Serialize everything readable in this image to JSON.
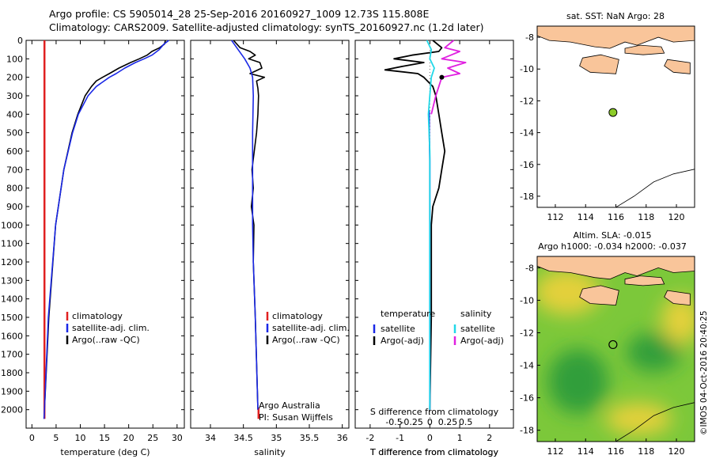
{
  "header": {
    "line1": "Argo profile: CS 5905014_28 25-Sep-2016 20160927_1009 12.73S 115.808E",
    "line2": "Climatology: CARS2009. Satellite-adjusted climatology: synTS_20160927.nc (1.2d later)"
  },
  "colors": {
    "climatology": "#e02020",
    "satellite": "#1a28e6",
    "argo": "#000000",
    "sal_satellite": "#22d8e8",
    "sal_argo": "#e020e0",
    "land": "#f9c59a",
    "sst_marker": "#8ccc28"
  },
  "chart_data": [
    {
      "type": "line",
      "panel": "temperature",
      "xlabel": "temperature (deg C)",
      "ylabel": "",
      "xlim": [
        -1.2,
        31.5
      ],
      "ylim": [
        2100,
        0
      ],
      "xticks": [
        "0",
        "5",
        "10",
        "15",
        "20",
        "25",
        "30"
      ],
      "xtick_values": [
        0,
        5,
        10,
        15,
        20,
        25,
        30
      ],
      "yticks": [
        "0",
        "100",
        "200",
        "300",
        "400",
        "500",
        "600",
        "700",
        "800",
        "900",
        "1000",
        "1100",
        "1200",
        "1300",
        "1400",
        "1500",
        "1600",
        "1700",
        "1800",
        "1900",
        "2000"
      ],
      "ytick_values": [
        0,
        100,
        200,
        300,
        400,
        500,
        600,
        700,
        800,
        900,
        1000,
        1100,
        1200,
        1300,
        1400,
        1500,
        1600,
        1700,
        1800,
        1900,
        2000
      ],
      "legend": [
        "climatology",
        "satellite-adj. clim.",
        "Argo(..raw -QC)"
      ],
      "series": [
        {
          "name": "Argo(..raw -QC)",
          "color_key": "argo",
          "depth": [
            0,
            20,
            40,
            60,
            80,
            100,
            120,
            150,
            180,
            200,
            220,
            250,
            300,
            400,
            500,
            700,
            1000,
            1500,
            2000
          ],
          "values": [
            27.6,
            27.4,
            26.4,
            24.8,
            23.8,
            22.2,
            20.4,
            18.0,
            16.0,
            14.6,
            13.3,
            12.3,
            11.0,
            9.5,
            8.3,
            6.6,
            4.9,
            3.5,
            2.6
          ]
        },
        {
          "name": "climatology",
          "color_key": "climatology",
          "depth": [
            0,
            2000,
            2050
          ],
          "values": [
            2.6,
            2.6,
            2.6
          ]
        },
        {
          "name": "satellite-adj. clim.",
          "color_key": "satellite",
          "depth": [
            0,
            20,
            50,
            80,
            100,
            120,
            150,
            180,
            200,
            250,
            300,
            400,
            500,
            700,
            1000,
            1500,
            2000,
            2050
          ],
          "values": [
            28.3,
            27.3,
            26.3,
            24.8,
            23.2,
            21.4,
            19.2,
            17.4,
            16.0,
            13.3,
            11.6,
            9.6,
            8.4,
            6.6,
            4.9,
            3.4,
            2.6,
            2.5
          ]
        }
      ]
    },
    {
      "type": "line",
      "panel": "salinity",
      "xlabel": "salinity",
      "xlim": [
        33.7,
        36.1
      ],
      "ylim": [
        2100,
        0
      ],
      "xticks": [
        "34",
        "34.5",
        "35",
        "35.5",
        "36"
      ],
      "xtick_values": [
        34,
        34.5,
        35,
        35.5,
        36
      ],
      "legend": [
        "climatology",
        "satellite-adj. clim.",
        "Argo(..raw -QC)"
      ],
      "annotation": [
        "Argo Australia",
        "PI: Susan Wijffels"
      ],
      "series": [
        {
          "name": "Argo(..raw -QC)",
          "color_key": "argo",
          "depth": [
            0,
            40,
            60,
            80,
            100,
            120,
            150,
            180,
            200,
            220,
            260,
            300,
            400,
            500,
            700,
            800,
            900,
            1000,
            1200,
            1500,
            2000
          ],
          "values": [
            34.35,
            34.45,
            34.6,
            34.68,
            34.58,
            34.75,
            34.78,
            34.6,
            34.82,
            34.7,
            34.72,
            34.73,
            34.72,
            34.7,
            34.63,
            34.65,
            34.62,
            34.66,
            34.65,
            34.68,
            34.72
          ]
        },
        {
          "name": "climatology",
          "color_key": "climatology",
          "depth": [
            1990,
            2050
          ],
          "values": [
            34.73,
            34.73
          ]
        },
        {
          "name": "satellite-adj. clim.",
          "color_key": "satellite",
          "depth": [
            0,
            50,
            100,
            150,
            200,
            300,
            500,
            800,
            1000,
            1200,
            1500,
            2000
          ],
          "values": [
            34.32,
            34.42,
            34.52,
            34.6,
            34.64,
            34.65,
            34.64,
            34.64,
            34.64,
            34.65,
            34.68,
            34.72
          ]
        }
      ]
    },
    {
      "type": "line",
      "panel": "differences",
      "xlabel": "T difference from climatology",
      "xlabel_top": "S difference from climatology",
      "xlim": [
        -2.5,
        2.8
      ],
      "ylim": [
        2100,
        0
      ],
      "xticks": [
        "-2",
        "-1",
        "0",
        "1",
        "2"
      ],
      "xtick_values": [
        -2,
        -1,
        0,
        1,
        2
      ],
      "sticks": [
        "-0.5",
        "-0.25",
        "0",
        "0.25",
        "0.5"
      ],
      "stick_values": [
        -0.5,
        -0.25,
        0,
        0.25,
        0.5
      ],
      "legend_temperature_title": "temperature",
      "legend_salinity_title": "salinity",
      "legend_temperature": [
        "satellite",
        "Argo(-adj)"
      ],
      "legend_salinity": [
        "satellite",
        "Argo(-adj)"
      ],
      "series": [
        {
          "name": "T Argo(-adj)",
          "color_key": "argo",
          "depth": [
            0,
            40,
            60,
            80,
            100,
            120,
            140,
            160,
            180,
            200,
            250,
            300,
            400,
            500,
            600,
            700,
            800,
            900,
            1000,
            1200,
            1500,
            2000
          ],
          "values": [
            0.1,
            0.4,
            0.3,
            -0.6,
            -1.2,
            -0.2,
            -0.9,
            -1.5,
            -0.4,
            -0.2,
            0.1,
            0.2,
            0.3,
            0.4,
            0.5,
            0.4,
            0.3,
            0.1,
            0.05,
            0.05,
            0.05,
            0.0
          ]
        },
        {
          "name": "S Argo(-adj)",
          "color_key": "sal_argo",
          "depth": [
            0,
            40,
            60,
            80,
            100,
            120,
            150,
            180,
            200,
            250,
            300,
            400
          ],
          "values": [
            0.8,
            0.5,
            1.0,
            0.7,
            0.4,
            1.2,
            0.6,
            1.0,
            0.4,
            0.3,
            0.2,
            0.05
          ]
        },
        {
          "name": "T satellite",
          "color_key": "satellite",
          "depth": [
            380,
            480,
            650,
            1000,
            1500,
            2000
          ],
          "values": [
            -0.02,
            -0.02,
            0.0,
            0.0,
            0.0,
            0.0
          ]
        },
        {
          "name": "S satellite",
          "color_key": "sal_satellite",
          "depth": [
            0,
            50,
            100,
            150,
            200,
            300,
            400,
            600,
            1000,
            1500,
            2000
          ],
          "values": [
            -0.1,
            0.05,
            0.0,
            0.15,
            0.05,
            0.0,
            -0.05,
            0.0,
            0.0,
            0.0,
            0.0
          ]
        }
      ]
    },
    {
      "type": "scatter",
      "panel": "sst_map",
      "title": "sat. SST: NaN  Argo: 28",
      "xlim": [
        110.8,
        121.2
      ],
      "ylim": [
        -18.7,
        -7.3
      ],
      "xticks": [
        "112",
        "114",
        "116",
        "118",
        "120"
      ],
      "xtick_values": [
        112,
        114,
        116,
        118,
        120
      ],
      "yticks": [
        "-8",
        "-10",
        "-12",
        "-14",
        "-16",
        "-18"
      ],
      "ytick_values": [
        -8,
        -10,
        -12,
        -14,
        -16,
        -18
      ],
      "points": [
        {
          "lon": 115.808,
          "lat": -12.73
        }
      ]
    },
    {
      "type": "heatmap",
      "panel": "sla_map",
      "title_line1": "Altim. SLA: -0.015",
      "title_line2": "Argo h1000: -0.034 h2000: -0.037",
      "xlim": [
        110.8,
        121.2
      ],
      "ylim": [
        -18.7,
        -7.3
      ],
      "xticks": [
        "112",
        "114",
        "116",
        "118",
        "120"
      ],
      "xtick_values": [
        112,
        114,
        116,
        118,
        120
      ],
      "yticks": [
        "-8",
        "-10",
        "-12",
        "-14",
        "-16",
        "-18"
      ],
      "ytick_values": [
        -8,
        -10,
        -12,
        -14,
        -16,
        -18
      ],
      "points": [
        {
          "lon": 115.808,
          "lat": -12.73
        }
      ],
      "blobs": [
        {
          "lon": 112.8,
          "lat": -9.5,
          "rx": 2.2,
          "ry": 1.4,
          "level": "high"
        },
        {
          "lon": 113.5,
          "lat": -15.0,
          "rx": 2.0,
          "ry": 2.0,
          "level": "low"
        },
        {
          "lon": 118.5,
          "lat": -13.2,
          "rx": 1.8,
          "ry": 1.2,
          "level": "low"
        },
        {
          "lon": 117.5,
          "lat": -17.3,
          "rx": 2.2,
          "ry": 1.0,
          "level": "high"
        },
        {
          "lon": 120.3,
          "lat": -11.2,
          "rx": 1.3,
          "ry": 1.5,
          "level": "high"
        }
      ]
    }
  ],
  "credit": "©IMOS 04-Oct-2016 20:40:25"
}
